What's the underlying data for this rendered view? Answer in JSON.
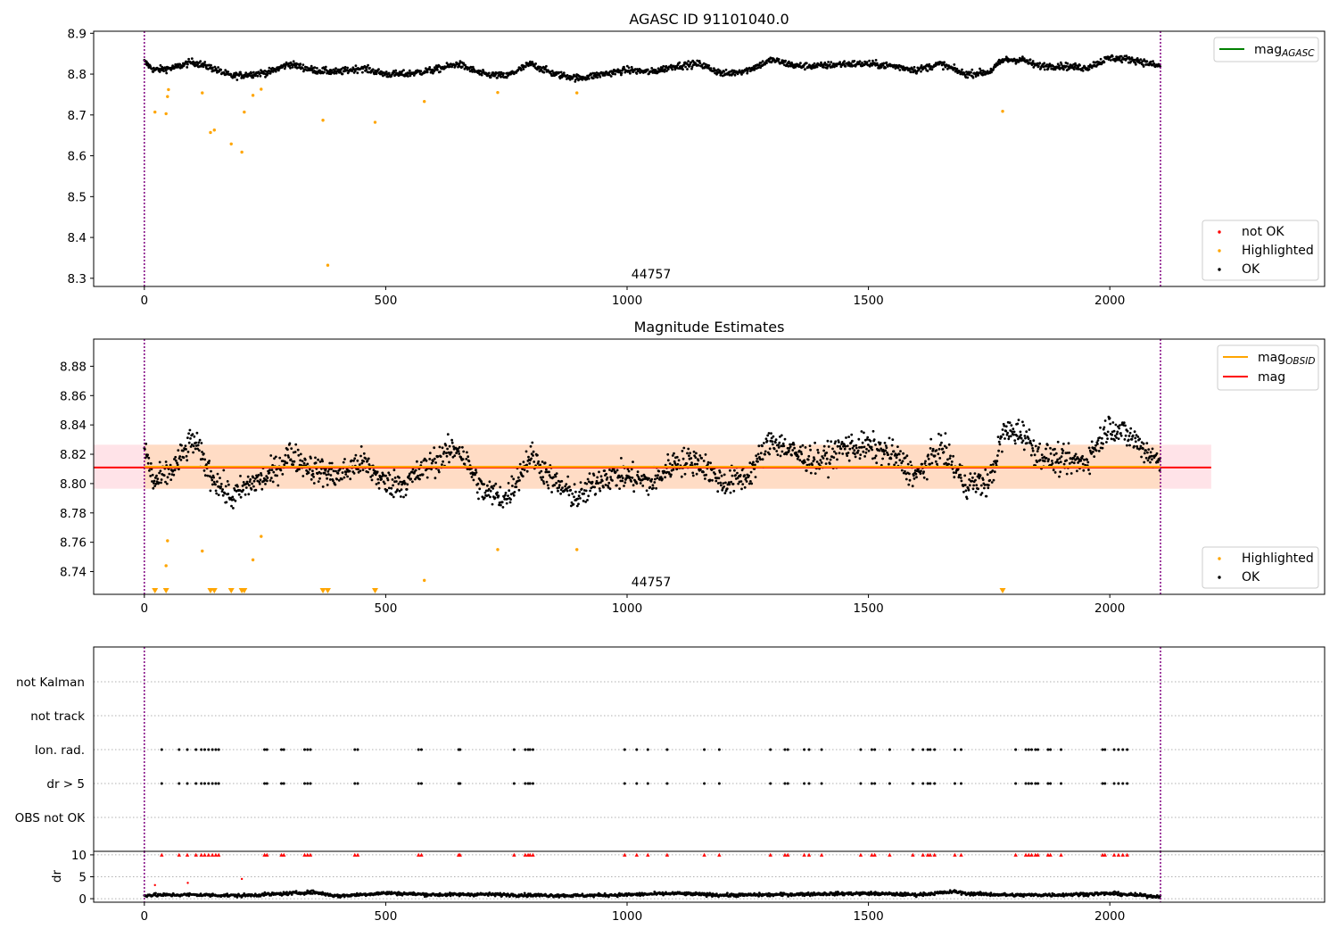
{
  "figure": {
    "panels": [
      {
        "id": "agasc",
        "title": "AGASC ID 91101040.0",
        "annotation": "44757"
      },
      {
        "id": "estimates",
        "title": "Magnitude Estimates",
        "annotation": "44757"
      },
      {
        "id": "flags",
        "title": ""
      },
      {
        "id": "dr",
        "title": ""
      }
    ],
    "colors": {
      "ok": "#000000",
      "highlighted": "#FFA500",
      "not_ok": "#FF0000",
      "mag_agasc": "#008000",
      "mag_obsid": "#FFA500",
      "mag": "#FF0000",
      "obs_boundary": "#800080",
      "band_mag": "#FFC0CB",
      "band_obsid": "#FFDAB9",
      "grid": "#b0b0b0"
    }
  },
  "chart_data": [
    {
      "type": "scatter",
      "panel": "agasc",
      "title": "AGASC ID 91101040.0",
      "xlabel": "",
      "ylabel": "",
      "xlim": [
        -105,
        2445
      ],
      "ylim": [
        8.28,
        8.905
      ],
      "xticks": [
        0,
        500,
        1000,
        1500,
        2000
      ],
      "yticks": [
        8.3,
        8.4,
        8.5,
        8.6,
        8.7,
        8.8,
        8.9
      ],
      "obs_boundaries": [
        0,
        2105
      ],
      "obs_label": {
        "text": "44757",
        "x": 1050
      },
      "legend": [
        {
          "label": "mag",
          "subscript": "AGASC",
          "kind": "line",
          "color": "#008000",
          "placement": "top-right"
        },
        {
          "label": "not OK",
          "kind": "marker",
          "color": "#FF0000",
          "placement": "bottom-right"
        },
        {
          "label": "Highlighted",
          "kind": "marker",
          "color": "#FFA500",
          "placement": "bottom-right"
        },
        {
          "label": "OK",
          "kind": "marker",
          "color": "#000000",
          "placement": "bottom-right"
        }
      ],
      "ok_trend": {
        "x": [
          0,
          20,
          60,
          100,
          140,
          180,
          220,
          260,
          300,
          350,
          400,
          450,
          500,
          540,
          600,
          650,
          700,
          750,
          800,
          850,
          900,
          950,
          1000,
          1050,
          1100,
          1150,
          1200,
          1250,
          1300,
          1350,
          1400,
          1450,
          1500,
          1550,
          1600,
          1650,
          1700,
          1750,
          1780,
          1820,
          1850,
          1900,
          1950,
          2000,
          2050,
          2100
        ],
        "y": [
          8.83,
          8.81,
          8.815,
          8.83,
          8.815,
          8.795,
          8.8,
          8.805,
          8.825,
          8.81,
          8.805,
          8.815,
          8.8,
          8.8,
          8.81,
          8.825,
          8.8,
          8.795,
          8.825,
          8.8,
          8.79,
          8.8,
          8.81,
          8.805,
          8.82,
          8.825,
          8.8,
          8.81,
          8.835,
          8.82,
          8.82,
          8.825,
          8.825,
          8.82,
          8.81,
          8.825,
          8.8,
          8.805,
          8.835,
          8.835,
          8.82,
          8.82,
          8.815,
          8.84,
          8.835,
          8.82
        ],
        "scatter": 0.008
      },
      "highlighted": {
        "x": [
          22,
          45,
          48,
          50,
          120,
          137,
          145,
          180,
          202,
          207,
          225,
          242,
          370,
          380,
          478,
          580,
          732,
          896,
          1778
        ],
        "y": [
          8.707,
          8.703,
          8.745,
          8.762,
          8.754,
          8.657,
          8.663,
          8.629,
          8.609,
          8.707,
          8.748,
          8.763,
          8.687,
          8.332,
          8.682,
          8.733,
          8.755,
          8.754,
          8.709
        ]
      }
    },
    {
      "type": "scatter",
      "panel": "estimates",
      "title": "Magnitude Estimates",
      "xlabel": "",
      "ylabel": "",
      "xlim": [
        -105,
        2445
      ],
      "ylim": [
        8.7245,
        8.8985
      ],
      "xticks": [
        0,
        500,
        1000,
        1500,
        2000
      ],
      "yticks": [
        8.74,
        8.76,
        8.78,
        8.8,
        8.82,
        8.84,
        8.86,
        8.88
      ],
      "obs_boundaries": [
        0,
        2105
      ],
      "obs_label": {
        "text": "44757",
        "x": 1050
      },
      "mag": {
        "value": 8.811,
        "xrange": [
          -105,
          2210
        ],
        "band": [
          8.7965,
          8.8265
        ]
      },
      "mag_obsid": {
        "value": 8.8115,
        "xrange": [
          0,
          2105
        ],
        "band": [
          8.7965,
          8.8265
        ]
      },
      "legend": [
        {
          "label": "mag",
          "subscript": "OBSID",
          "kind": "line",
          "color": "#FFA500",
          "placement": "top-right"
        },
        {
          "label": "mag",
          "kind": "line",
          "color": "#FF0000",
          "placement": "top-right"
        },
        {
          "label": "Highlighted",
          "kind": "marker",
          "color": "#FFA500",
          "placement": "bottom-right"
        },
        {
          "label": "OK",
          "kind": "marker",
          "color": "#000000",
          "placement": "bottom-right"
        }
      ],
      "ok_trend": {
        "x": [
          0,
          20,
          60,
          100,
          140,
          180,
          220,
          260,
          300,
          350,
          400,
          450,
          500,
          540,
          600,
          650,
          700,
          750,
          800,
          850,
          900,
          950,
          1000,
          1050,
          1100,
          1150,
          1200,
          1250,
          1300,
          1350,
          1400,
          1450,
          1500,
          1550,
          1600,
          1650,
          1700,
          1750,
          1780,
          1820,
          1850,
          1900,
          1950,
          2000,
          2050,
          2100
        ],
        "y": [
          8.825,
          8.8,
          8.81,
          8.83,
          8.805,
          8.79,
          8.8,
          8.805,
          8.82,
          8.81,
          8.805,
          8.815,
          8.8,
          8.8,
          8.815,
          8.825,
          8.795,
          8.79,
          8.82,
          8.8,
          8.79,
          8.805,
          8.805,
          8.8,
          8.815,
          8.815,
          8.8,
          8.805,
          8.83,
          8.82,
          8.815,
          8.825,
          8.825,
          8.82,
          8.805,
          8.825,
          8.8,
          8.8,
          8.835,
          8.835,
          8.82,
          8.815,
          8.815,
          8.84,
          8.83,
          8.815
        ],
        "scatter": 0.009
      },
      "highlighted": {
        "x": [
          45,
          48,
          120,
          225,
          242,
          580,
          732,
          896
        ],
        "y": [
          8.744,
          8.761,
          8.754,
          8.748,
          8.764,
          8.734,
          8.755,
          8.755
        ]
      },
      "off_scale_markers": {
        "x": [
          22,
          45,
          137,
          145,
          180,
          202,
          207,
          370,
          380,
          478,
          1778
        ],
        "y_at": "bottom"
      }
    },
    {
      "type": "scatter",
      "panel": "flags",
      "xlabel": "",
      "ylabel": "",
      "xlim": [
        -105,
        2445
      ],
      "categories": [
        "not Kalman",
        "not track",
        "Ion. rad.",
        "dr > 5",
        "OBS not OK"
      ],
      "obs_boundaries": [
        0,
        2105
      ],
      "flag_x": [
        36,
        72,
        89,
        107,
        118,
        125,
        133,
        141,
        148,
        154,
        249,
        254,
        284,
        289,
        332,
        338,
        344,
        436,
        442,
        568,
        574,
        651,
        654,
        766,
        789,
        795,
        799,
        805,
        995,
        1020,
        1043,
        1083,
        1160,
        1191,
        1297,
        1327,
        1333,
        1367,
        1377,
        1403,
        1484,
        1507,
        1513,
        1544,
        1592,
        1613,
        1623,
        1628,
        1637,
        1679,
        1692,
        1805,
        1826,
        1832,
        1838,
        1846,
        1851,
        1872,
        1877,
        1899,
        1985,
        1990,
        2009,
        2018,
        2027,
        2036
      ],
      "flag_rows": [
        "Ion. rad.",
        "dr > 5"
      ]
    },
    {
      "type": "scatter",
      "panel": "dr",
      "xlabel": "",
      "ylabel": "dr",
      "xlim": [
        -105,
        2445
      ],
      "ylim": [
        -0.8,
        10.8
      ],
      "xticks": [
        0,
        500,
        1000,
        1500,
        2000
      ],
      "yticks": [
        0,
        5,
        10
      ],
      "obs_boundaries": [
        0,
        2105
      ],
      "dr_trend": {
        "x": [
          0,
          100,
          200,
          300,
          350,
          400,
          500,
          600,
          700,
          800,
          900,
          1000,
          1100,
          1200,
          1300,
          1400,
          1500,
          1600,
          1680,
          1700,
          1800,
          1900,
          2000,
          2100
        ],
        "y": [
          0.8,
          0.9,
          0.7,
          1.2,
          1.5,
          0.6,
          1.3,
          0.9,
          1.0,
          0.8,
          0.7,
          0.9,
          1.2,
          0.8,
          0.9,
          1.1,
          1.2,
          0.9,
          1.6,
          1.2,
          0.8,
          0.9,
          1.2,
          0.5
        ],
        "scatter": 0.35
      },
      "outliers": {
        "x": [
          22,
          90,
          202
        ],
        "y": [
          3.1,
          3.6,
          4.5
        ]
      },
      "clipped_red_y": 10
    }
  ]
}
